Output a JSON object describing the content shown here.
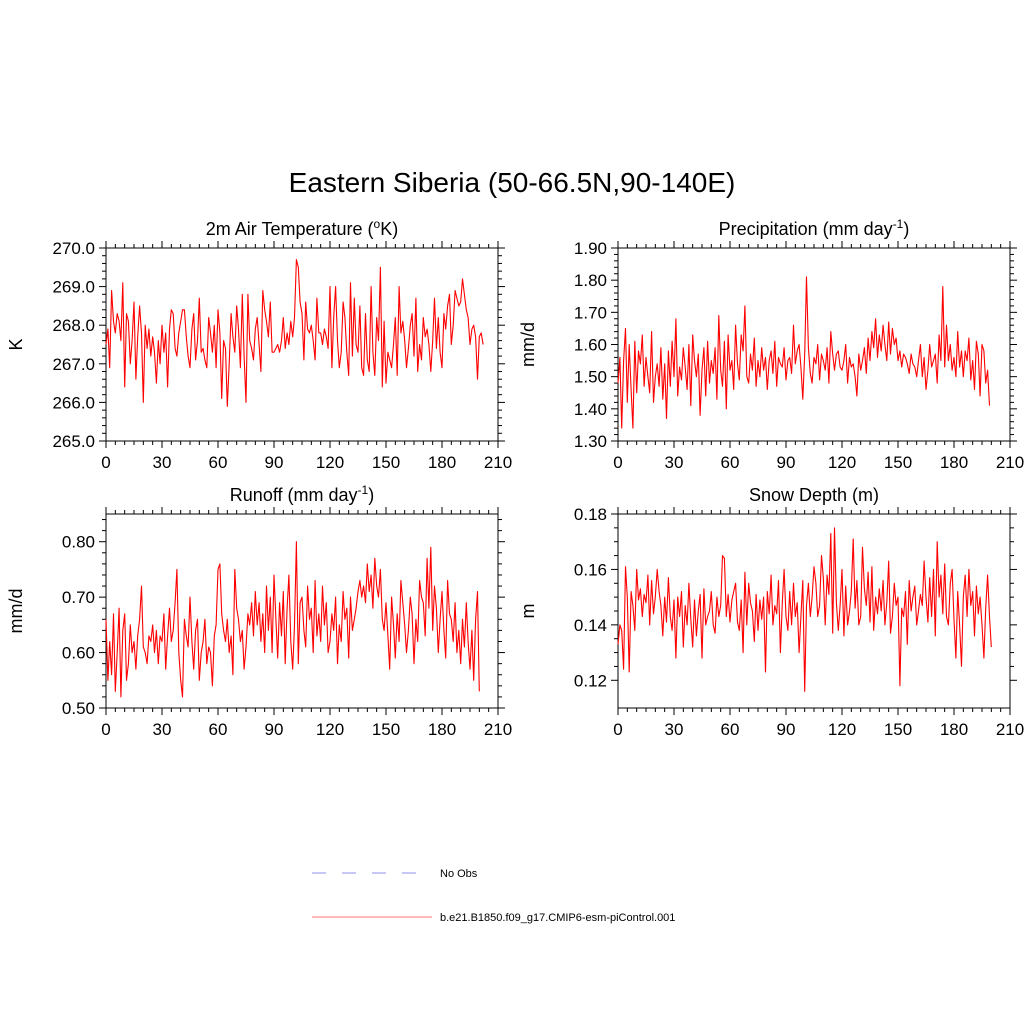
{
  "title": "Eastern Siberia (50-66.5N,90-140E)",
  "legend": [
    {
      "label": "No Obs",
      "style": "dashed",
      "color": "#a8a8f0"
    },
    {
      "label": "b.e21.B1850.f09_g17.CMIP6-esm-piControl.001",
      "style": "solid",
      "color": "#ff9090"
    }
  ],
  "line_color": "#ff0000",
  "chart_data": [
    {
      "type": "line",
      "title_main": "2m Air Temperature (",
      "title_sup": "o",
      "title_after": "K)",
      "ylabel": "K",
      "xlim": [
        0,
        210
      ],
      "xticks": [
        0,
        30,
        60,
        90,
        120,
        150,
        180,
        210
      ],
      "ylim": [
        265.0,
        270.0
      ],
      "yticks": [
        265.0,
        266.0,
        267.0,
        268.0,
        269.0,
        270.0
      ],
      "ytick_labels": [
        "265.0",
        "266.0",
        "267.0",
        "268.0",
        "269.0",
        "270.0"
      ],
      "yminor": 5,
      "series": [
        {
          "name": "b.e21.B1850.f09_g17.CMIP6-esm-piControl.001",
          "values": [
            267.5,
            267.9,
            266.9,
            268.9,
            268.1,
            267.8,
            268.3,
            268.1,
            267.6,
            269.1,
            266.4,
            268.3,
            268.1,
            267.0,
            267.6,
            268.6,
            266.6,
            267.7,
            268.5,
            267.8,
            266.0,
            268.0,
            267.4,
            267.9,
            267.2,
            267.7,
            267.3,
            266.5,
            267.6,
            267.0,
            268.0,
            267.3,
            267.8,
            266.4,
            267.9,
            268.4,
            268.3,
            267.4,
            267.2,
            267.8,
            268.1,
            268.4,
            268.4,
            267.7,
            267.2,
            266.9,
            267.9,
            268.3,
            267.1,
            267.6,
            268.7,
            267.3,
            267.4,
            267.1,
            266.9,
            268.2,
            267.8,
            267.3,
            268.0,
            266.9,
            268.4,
            267.8,
            266.1,
            267.6,
            267.4,
            265.9,
            267.0,
            268.3,
            267.7,
            267.3,
            268.5,
            267.9,
            266.9,
            268.8,
            267.2,
            266.0,
            268.8,
            267.6,
            267.4,
            267.1,
            267.9,
            268.2,
            267.5,
            266.8,
            268.9,
            268.4,
            268.1,
            267.7,
            268.6,
            267.3,
            267.3,
            267.4,
            267.5,
            267.3,
            267.6,
            268.2,
            267.4,
            267.8,
            267.5,
            268.1,
            267.7,
            268.2,
            269.7,
            269.5,
            268.6,
            268.3,
            267.1,
            268.6,
            267.9,
            267.8,
            268.0,
            267.6,
            267.1,
            268.7,
            267.8,
            267.8,
            267.5,
            267.9,
            267.7,
            267.4,
            269.0,
            266.9,
            268.2,
            269.0,
            267.6,
            266.9,
            267.3,
            268.6,
            268.2,
            267.3,
            266.7,
            269.1,
            267.2,
            268.7,
            267.5,
            267.3,
            268.5,
            266.9,
            266.7,
            268.3,
            267.1,
            266.8,
            269.0,
            267.3,
            266.7,
            268.2,
            267.6,
            269.5,
            266.4,
            268.1,
            266.5,
            267.3,
            267.1,
            266.9,
            267.5,
            268.2,
            266.7,
            269.0,
            267.8,
            268.1,
            267.6,
            266.9,
            267.4,
            268.0,
            268.3,
            267.2,
            268.7,
            266.8,
            267.5,
            267.1,
            268.2,
            267.7,
            267.9,
            267.5,
            266.8,
            267.6,
            268.7,
            267.4,
            268.2,
            267.3,
            266.9,
            268.3,
            267.9,
            268.5,
            268.8,
            267.5,
            268.0,
            268.9,
            268.7,
            268.5,
            268.6,
            269.2,
            268.8,
            268.4,
            268.2,
            267.5,
            267.9,
            268.0,
            267.7,
            266.6,
            267.7,
            267.8,
            267.5
          ]
        }
      ]
    },
    {
      "type": "line",
      "title_main": "Precipitation (mm day",
      "title_sup": "-1",
      "title_after": ")",
      "ylabel": "mm/d",
      "xlim": [
        0,
        210
      ],
      "xticks": [
        0,
        30,
        60,
        90,
        120,
        150,
        180,
        210
      ],
      "ylim": [
        1.3,
        1.9
      ],
      "yticks": [
        1.3,
        1.4,
        1.5,
        1.6,
        1.7,
        1.8,
        1.9
      ],
      "ytick_labels": [
        "1.30",
        "1.40",
        "1.50",
        "1.60",
        "1.70",
        "1.80",
        "1.90"
      ],
      "yminor": 5,
      "series": [
        {
          "name": "b.e21.B1850.f09_g17.CMIP6-esm-piControl.001",
          "values": [
            1.48,
            1.56,
            1.34,
            1.55,
            1.65,
            1.42,
            1.6,
            1.46,
            1.34,
            1.61,
            1.45,
            1.58,
            1.54,
            1.63,
            1.47,
            1.56,
            1.5,
            1.45,
            1.64,
            1.42,
            1.5,
            1.54,
            1.47,
            1.59,
            1.43,
            1.54,
            1.37,
            1.58,
            1.47,
            1.61,
            1.5,
            1.68,
            1.44,
            1.53,
            1.49,
            1.59,
            1.53,
            1.46,
            1.6,
            1.41,
            1.63,
            1.55,
            1.5,
            1.57,
            1.38,
            1.52,
            1.59,
            1.44,
            1.61,
            1.48,
            1.55,
            1.51,
            1.59,
            1.43,
            1.69,
            1.52,
            1.47,
            1.61,
            1.4,
            1.63,
            1.52,
            1.55,
            1.46,
            1.66,
            1.54,
            1.49,
            1.63,
            1.58,
            1.72,
            1.5,
            1.48,
            1.57,
            1.52,
            1.62,
            1.47,
            1.55,
            1.5,
            1.59,
            1.52,
            1.56,
            1.46,
            1.55,
            1.58,
            1.51,
            1.61,
            1.47,
            1.56,
            1.54,
            1.53,
            1.59,
            1.49,
            1.55,
            1.56,
            1.51,
            1.66,
            1.54,
            1.58,
            1.6,
            1.53,
            1.43,
            1.57,
            1.81,
            1.59,
            1.51,
            1.48,
            1.56,
            1.54,
            1.6,
            1.49,
            1.57,
            1.55,
            1.52,
            1.59,
            1.48,
            1.64,
            1.57,
            1.52,
            1.57,
            1.58,
            1.53,
            1.52,
            1.55,
            1.6,
            1.48,
            1.56,
            1.53,
            1.54,
            1.5,
            1.44,
            1.57,
            1.52,
            1.55,
            1.59,
            1.51,
            1.62,
            1.55,
            1.64,
            1.59,
            1.68,
            1.56,
            1.63,
            1.58,
            1.66,
            1.6,
            1.55,
            1.67,
            1.57,
            1.65,
            1.6,
            1.62,
            1.55,
            1.58,
            1.53,
            1.57,
            1.56,
            1.54,
            1.51,
            1.57,
            1.54,
            1.53,
            1.5,
            1.55,
            1.6,
            1.5,
            1.56,
            1.46,
            1.52,
            1.6,
            1.53,
            1.55,
            1.57,
            1.48,
            1.63,
            1.55,
            1.78,
            1.53,
            1.66,
            1.55,
            1.6,
            1.52,
            1.56,
            1.5,
            1.64,
            1.53,
            1.58,
            1.5,
            1.58,
            1.55,
            1.62,
            1.49,
            1.55,
            1.46,
            1.61,
            1.57,
            1.44,
            1.6,
            1.58,
            1.48,
            1.52,
            1.41
          ]
        }
      ]
    },
    {
      "type": "line",
      "title_main": "Runoff (mm day",
      "title_sup": "-1",
      "title_after": ")",
      "ylabel": "mm/d",
      "xlim": [
        0,
        210
      ],
      "xticks": [
        0,
        30,
        60,
        90,
        120,
        150,
        180,
        210
      ],
      "ylim": [
        0.5,
        0.85
      ],
      "yticks": [
        0.5,
        0.6,
        0.7,
        0.8
      ],
      "ytick_labels": [
        "0.50",
        "0.60",
        "0.70",
        "0.80"
      ],
      "yminor": 5,
      "series": [
        {
          "name": "b.e21.B1850.f09_g17.CMIP6-esm-piControl.001",
          "values": [
            0.66,
            0.55,
            0.62,
            0.56,
            0.67,
            0.53,
            0.6,
            0.68,
            0.52,
            0.64,
            0.67,
            0.55,
            0.58,
            0.65,
            0.6,
            0.62,
            0.57,
            0.63,
            0.66,
            0.72,
            0.61,
            0.6,
            0.58,
            0.63,
            0.62,
            0.65,
            0.6,
            0.64,
            0.58,
            0.63,
            0.62,
            0.67,
            0.57,
            0.63,
            0.68,
            0.62,
            0.64,
            0.69,
            0.75,
            0.6,
            0.55,
            0.52,
            0.66,
            0.63,
            0.61,
            0.7,
            0.62,
            0.57,
            0.64,
            0.66,
            0.55,
            0.6,
            0.62,
            0.66,
            0.58,
            0.61,
            0.6,
            0.54,
            0.63,
            0.65,
            0.75,
            0.76,
            0.67,
            0.64,
            0.62,
            0.66,
            0.6,
            0.63,
            0.56,
            0.75,
            0.68,
            0.66,
            0.62,
            0.64,
            0.57,
            0.61,
            0.67,
            0.65,
            0.69,
            0.63,
            0.71,
            0.65,
            0.69,
            0.62,
            0.67,
            0.6,
            0.72,
            0.64,
            0.7,
            0.6,
            0.74,
            0.66,
            0.59,
            0.69,
            0.63,
            0.71,
            0.58,
            0.68,
            0.74,
            0.62,
            0.57,
            0.65,
            0.8,
            0.58,
            0.69,
            0.7,
            0.64,
            0.61,
            0.72,
            0.66,
            0.68,
            0.6,
            0.73,
            0.63,
            0.67,
            0.62,
            0.72,
            0.65,
            0.69,
            0.6,
            0.62,
            0.67,
            0.64,
            0.7,
            0.58,
            0.65,
            0.62,
            0.71,
            0.66,
            0.68,
            0.59,
            0.7,
            0.64,
            0.66,
            0.68,
            0.71,
            0.73,
            0.7,
            0.72,
            0.69,
            0.76,
            0.71,
            0.74,
            0.68,
            0.77,
            0.72,
            0.7,
            0.75,
            0.66,
            0.64,
            0.69,
            0.63,
            0.57,
            0.7,
            0.65,
            0.59,
            0.67,
            0.62,
            0.73,
            0.69,
            0.65,
            0.6,
            0.64,
            0.7,
            0.67,
            0.58,
            0.66,
            0.62,
            0.73,
            0.7,
            0.69,
            0.63,
            0.77,
            0.68,
            0.79,
            0.64,
            0.72,
            0.68,
            0.6,
            0.66,
            0.71,
            0.64,
            0.59,
            0.73,
            0.67,
            0.66,
            0.62,
            0.69,
            0.6,
            0.64,
            0.58,
            0.66,
            0.61,
            0.69,
            0.62,
            0.57,
            0.64,
            0.55,
            0.66,
            0.71,
            0.53
          ]
        }
      ]
    },
    {
      "type": "line",
      "title_main": "Snow Depth (m)",
      "title_sup": "",
      "title_after": "",
      "ylabel": "m",
      "xlim": [
        0,
        210
      ],
      "xticks": [
        0,
        30,
        60,
        90,
        120,
        150,
        180,
        210
      ],
      "ylim": [
        0.11,
        0.18
      ],
      "yticks": [
        0.12,
        0.14,
        0.16,
        0.18
      ],
      "ytick_labels": [
        "0.12",
        "0.14",
        "0.16",
        "0.18"
      ],
      "yminor": 4,
      "series": [
        {
          "name": "b.e21.B1850.f09_g17.CMIP6-esm-piControl.001",
          "values": [
            0.133,
            0.14,
            0.138,
            0.124,
            0.161,
            0.15,
            0.123,
            0.152,
            0.147,
            0.138,
            0.16,
            0.149,
            0.153,
            0.143,
            0.151,
            0.148,
            0.158,
            0.14,
            0.156,
            0.144,
            0.15,
            0.16,
            0.152,
            0.147,
            0.136,
            0.15,
            0.141,
            0.157,
            0.143,
            0.138,
            0.149,
            0.128,
            0.15,
            0.143,
            0.152,
            0.132,
            0.147,
            0.14,
            0.155,
            0.142,
            0.132,
            0.149,
            0.136,
            0.145,
            0.151,
            0.128,
            0.153,
            0.14,
            0.143,
            0.145,
            0.152,
            0.14,
            0.137,
            0.15,
            0.143,
            0.147,
            0.165,
            0.164,
            0.143,
            0.151,
            0.141,
            0.149,
            0.152,
            0.155,
            0.141,
            0.138,
            0.149,
            0.13,
            0.159,
            0.14,
            0.155,
            0.148,
            0.145,
            0.134,
            0.151,
            0.138,
            0.149,
            0.142,
            0.15,
            0.123,
            0.152,
            0.144,
            0.158,
            0.14,
            0.147,
            0.144,
            0.156,
            0.13,
            0.148,
            0.16,
            0.143,
            0.138,
            0.152,
            0.14,
            0.155,
            0.143,
            0.148,
            0.13,
            0.143,
            0.156,
            0.116,
            0.147,
            0.155,
            0.143,
            0.15,
            0.161,
            0.155,
            0.143,
            0.147,
            0.165,
            0.157,
            0.14,
            0.158,
            0.151,
            0.173,
            0.137,
            0.175,
            0.148,
            0.138,
            0.147,
            0.16,
            0.136,
            0.154,
            0.14,
            0.145,
            0.152,
            0.171,
            0.146,
            0.156,
            0.14,
            0.143,
            0.168,
            0.153,
            0.147,
            0.159,
            0.141,
            0.161,
            0.138,
            0.15,
            0.144,
            0.153,
            0.145,
            0.156,
            0.14,
            0.148,
            0.163,
            0.137,
            0.143,
            0.155,
            0.147,
            0.15,
            0.118,
            0.146,
            0.143,
            0.152,
            0.133,
            0.156,
            0.145,
            0.15,
            0.154,
            0.14,
            0.145,
            0.151,
            0.147,
            0.163,
            0.15,
            0.141,
            0.157,
            0.143,
            0.16,
            0.136,
            0.17,
            0.15,
            0.158,
            0.144,
            0.162,
            0.143,
            0.14,
            0.155,
            0.16,
            0.142,
            0.128,
            0.152,
            0.14,
            0.125,
            0.15,
            0.158,
            0.143,
            0.16,
            0.147,
            0.152,
            0.136,
            0.154,
            0.144,
            0.15,
            0.14,
            0.128,
            0.146,
            0.158,
            0.143,
            0.132
          ]
        }
      ]
    }
  ]
}
